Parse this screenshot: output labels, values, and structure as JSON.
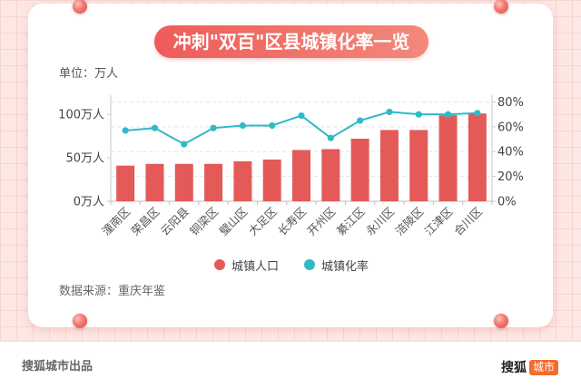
{
  "source": "数据来源：重庆年鉴",
  "footer": {
    "credit": "搜狐城市出品",
    "logo_main": "搜狐",
    "logo_badge": "城市"
  },
  "colors": {
    "bar": "#e35a58",
    "line": "#2fbac8",
    "logo_badge": "#f26c2c"
  },
  "icons": [
    "pushpin-icon",
    "legend-dot-icon"
  ],
  "chart_data": {
    "type": "bar",
    "title": "冲刺\"双百\"区县城镇化率一览",
    "ylabel": "单位：万人",
    "categories": [
      "潼南区",
      "荣昌区",
      "云阳县",
      "铜梁区",
      "璧山区",
      "大足区",
      "长寿区",
      "开州区",
      "綦江区",
      "永川区",
      "涪陵区",
      "江津区",
      "合川区"
    ],
    "series": [
      {
        "name": "城镇人口",
        "type": "bar",
        "y_axis": "left",
        "values": [
          41,
          43,
          43,
          43,
          46,
          48,
          59,
          60,
          72,
          82,
          82,
          99,
          101
        ]
      },
      {
        "name": "城镇化率",
        "type": "line",
        "y_axis": "right",
        "values": [
          57,
          59,
          46,
          59,
          61,
          61,
          69,
          51,
          65,
          72,
          70,
          70,
          71
        ]
      }
    ],
    "y_left": {
      "ylim": [
        0,
        120
      ],
      "ticks": [
        0,
        50,
        100
      ],
      "tick_labels": [
        "0万人",
        "50万人",
        "100万人"
      ]
    },
    "y_right": {
      "ylim": [
        0,
        84
      ],
      "ticks": [
        0,
        20,
        40,
        60,
        80
      ],
      "tick_labels": [
        "0%",
        "20%",
        "40%",
        "60%",
        "80%"
      ]
    },
    "grid": true,
    "legend_position": "bottom"
  }
}
